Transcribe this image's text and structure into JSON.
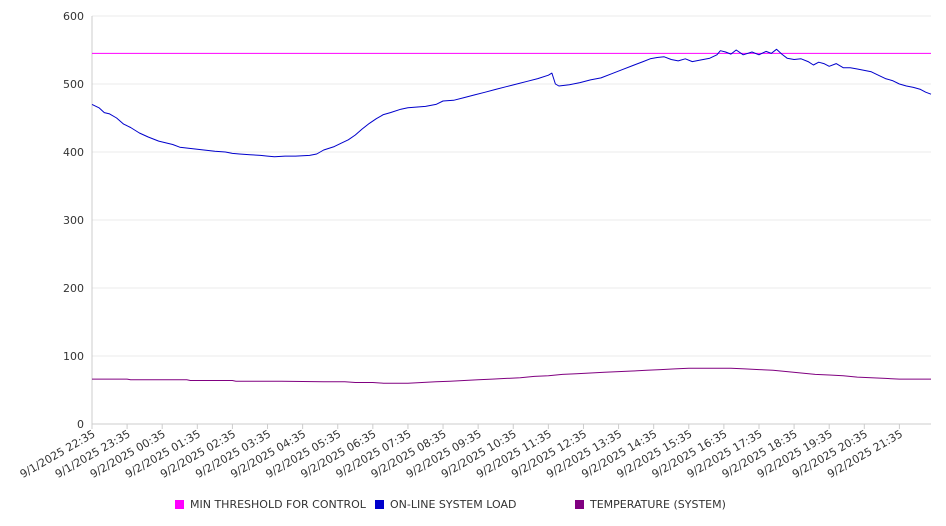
{
  "chart_data": {
    "type": "line",
    "title": "",
    "xlabel": "",
    "ylabel": "",
    "ylim": [
      0,
      600
    ],
    "yticks": [
      "0",
      "100",
      "200",
      "300",
      "400",
      "500",
      "600"
    ],
    "grid": "horizontal",
    "legend_position": "bottom",
    "x_tick_labels": [
      "9/1/2025 22:35",
      "9/1/2025 23:35",
      "9/2/2025 00:35",
      "9/2/2025 01:35",
      "9/2/2025 02:35",
      "9/2/2025 03:35",
      "9/2/2025 04:35",
      "9/2/2025 05:35",
      "9/2/2025 06:35",
      "9/2/2025 07:35",
      "9/2/2025 08:35",
      "9/2/2025 09:35",
      "9/2/2025 10:35",
      "9/2/2025 11:35",
      "9/2/2025 12:35",
      "9/2/2025 13:35",
      "9/2/2025 14:35",
      "9/2/2025 15:35",
      "9/2/2025 16:35",
      "9/2/2025 17:35",
      "9/2/2025 18:35",
      "9/2/2025 19:35",
      "9/2/2025 20:35",
      "9/2/2025 21:35"
    ],
    "x_range_hours": [
      0,
      23.9
    ],
    "series": [
      {
        "name": "MIN THRESHOLD FOR CONTROL",
        "color": "#ff00ff",
        "points": [
          [
            0,
            545
          ],
          [
            23.9,
            545
          ]
        ]
      },
      {
        "name": "ON-LINE SYSTEM LOAD",
        "color": "#0000cc",
        "points": [
          [
            0,
            470
          ],
          [
            0.2,
            465
          ],
          [
            0.35,
            458
          ],
          [
            0.5,
            456
          ],
          [
            0.7,
            450
          ],
          [
            0.9,
            441
          ],
          [
            1.1,
            436
          ],
          [
            1.35,
            428
          ],
          [
            1.6,
            422
          ],
          [
            1.9,
            416
          ],
          [
            2.3,
            411
          ],
          [
            2.5,
            407
          ],
          [
            3.0,
            404
          ],
          [
            3.5,
            401
          ],
          [
            3.8,
            400
          ],
          [
            4.0,
            398
          ],
          [
            4.2,
            397
          ],
          [
            4.5,
            396
          ],
          [
            4.8,
            395
          ],
          [
            5.0,
            394
          ],
          [
            5.2,
            393
          ],
          [
            5.5,
            394
          ],
          [
            5.8,
            394
          ],
          [
            6.2,
            395
          ],
          [
            6.4,
            397
          ],
          [
            6.6,
            403
          ],
          [
            6.9,
            408
          ],
          [
            7.1,
            413
          ],
          [
            7.3,
            418
          ],
          [
            7.5,
            425
          ],
          [
            7.7,
            434
          ],
          [
            7.9,
            442
          ],
          [
            8.1,
            449
          ],
          [
            8.3,
            455
          ],
          [
            8.5,
            458
          ],
          [
            8.8,
            463
          ],
          [
            9.0,
            465
          ],
          [
            9.5,
            467
          ],
          [
            9.8,
            470
          ],
          [
            10.0,
            475
          ],
          [
            10.3,
            476
          ],
          [
            10.6,
            480
          ],
          [
            10.9,
            484
          ],
          [
            11.2,
            488
          ],
          [
            11.5,
            492
          ],
          [
            11.8,
            496
          ],
          [
            12.1,
            500
          ],
          [
            12.4,
            504
          ],
          [
            12.7,
            508
          ],
          [
            13.0,
            513
          ],
          [
            13.1,
            516
          ],
          [
            13.2,
            500
          ],
          [
            13.3,
            497
          ],
          [
            13.6,
            499
          ],
          [
            13.9,
            502
          ],
          [
            14.2,
            506
          ],
          [
            14.5,
            509
          ],
          [
            14.8,
            515
          ],
          [
            15.1,
            521
          ],
          [
            15.4,
            527
          ],
          [
            15.7,
            533
          ],
          [
            15.9,
            537
          ],
          [
            16.1,
            539
          ],
          [
            16.3,
            540
          ],
          [
            16.5,
            536
          ],
          [
            16.7,
            534
          ],
          [
            16.9,
            537
          ],
          [
            17.1,
            533
          ],
          [
            17.3,
            535
          ],
          [
            17.6,
            538
          ],
          [
            17.8,
            543
          ],
          [
            17.9,
            549
          ],
          [
            18.05,
            547
          ],
          [
            18.2,
            544
          ],
          [
            18.35,
            550
          ],
          [
            18.55,
            543
          ],
          [
            18.8,
            547
          ],
          [
            19.0,
            543
          ],
          [
            19.2,
            548
          ],
          [
            19.35,
            545
          ],
          [
            19.5,
            551
          ],
          [
            19.65,
            544
          ],
          [
            19.8,
            538
          ],
          [
            20.0,
            536
          ],
          [
            20.2,
            537
          ],
          [
            20.4,
            533
          ],
          [
            20.55,
            528
          ],
          [
            20.7,
            532
          ],
          [
            20.85,
            530
          ],
          [
            21.0,
            526
          ],
          [
            21.2,
            530
          ],
          [
            21.4,
            524
          ],
          [
            21.6,
            524
          ],
          [
            21.8,
            522
          ],
          [
            22.0,
            520
          ],
          [
            22.2,
            518
          ],
          [
            22.4,
            513
          ],
          [
            22.6,
            508
          ],
          [
            22.8,
            505
          ],
          [
            23.0,
            500
          ],
          [
            23.2,
            497
          ],
          [
            23.4,
            495
          ],
          [
            23.6,
            492
          ],
          [
            23.75,
            488
          ],
          [
            23.9,
            485
          ]
        ]
      },
      {
        "name": "TEMPERATURE (SYSTEM)",
        "color": "#800080",
        "points": [
          [
            0,
            66
          ],
          [
            1.0,
            66
          ],
          [
            1.1,
            65
          ],
          [
            2.7,
            65
          ],
          [
            2.8,
            64
          ],
          [
            4.0,
            64
          ],
          [
            4.1,
            63
          ],
          [
            5.4,
            63
          ],
          [
            6.6,
            62
          ],
          [
            7.2,
            62
          ],
          [
            7.5,
            61
          ],
          [
            8.0,
            61
          ],
          [
            8.3,
            60
          ],
          [
            9.0,
            60
          ],
          [
            9.4,
            61
          ],
          [
            9.8,
            62
          ],
          [
            10.2,
            63
          ],
          [
            10.6,
            64
          ],
          [
            11.0,
            65
          ],
          [
            11.4,
            66
          ],
          [
            11.8,
            67
          ],
          [
            12.2,
            68
          ],
          [
            12.6,
            70
          ],
          [
            13.0,
            71
          ],
          [
            13.4,
            73
          ],
          [
            13.8,
            74
          ],
          [
            14.2,
            75
          ],
          [
            14.6,
            76
          ],
          [
            15.0,
            77
          ],
          [
            15.4,
            78
          ],
          [
            15.8,
            79
          ],
          [
            16.2,
            80
          ],
          [
            16.6,
            81
          ],
          [
            17.0,
            82
          ],
          [
            17.4,
            82
          ],
          [
            17.8,
            82
          ],
          [
            18.2,
            82
          ],
          [
            18.6,
            81
          ],
          [
            19.0,
            80
          ],
          [
            19.4,
            79
          ],
          [
            19.8,
            77
          ],
          [
            20.2,
            75
          ],
          [
            20.6,
            73
          ],
          [
            21.0,
            72
          ],
          [
            21.4,
            71
          ],
          [
            21.8,
            69
          ],
          [
            22.2,
            68
          ],
          [
            22.6,
            67
          ],
          [
            23.0,
            66
          ],
          [
            23.4,
            66
          ],
          [
            23.9,
            66
          ]
        ]
      }
    ]
  }
}
